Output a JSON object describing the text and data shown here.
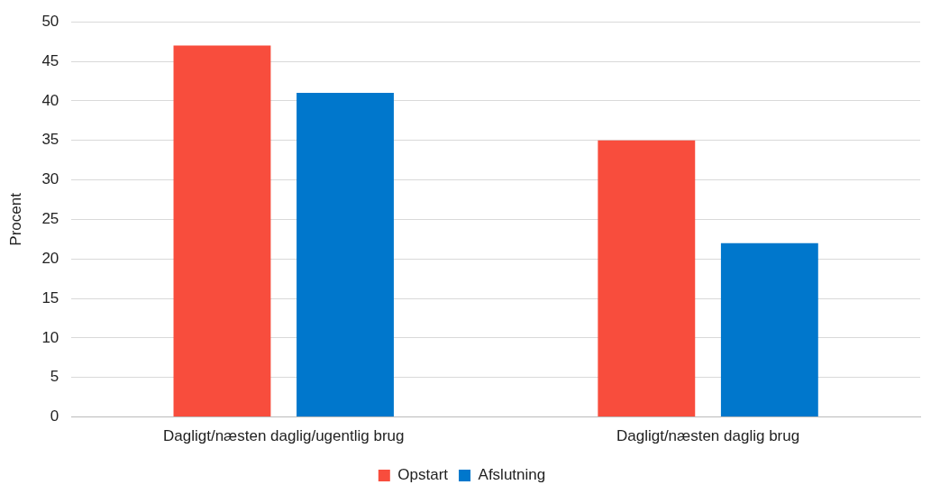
{
  "chart_data": {
    "type": "bar",
    "ylabel": "Procent",
    "categories": [
      "Dagligt/næsten daglig/ugentlig brug",
      "Dagligt/næsten daglig brug"
    ],
    "series": [
      {
        "name": "Opstart",
        "color": "#f84d3d",
        "values": [
          47,
          35
        ]
      },
      {
        "name": "Afslutning",
        "color": "#0077cc",
        "values": [
          41,
          22
        ]
      }
    ],
    "ylim": [
      0,
      50
    ],
    "yticks": [
      0,
      5,
      10,
      15,
      20,
      25,
      30,
      35,
      40,
      45,
      50
    ],
    "grid": "y",
    "legend": "bottom"
  }
}
